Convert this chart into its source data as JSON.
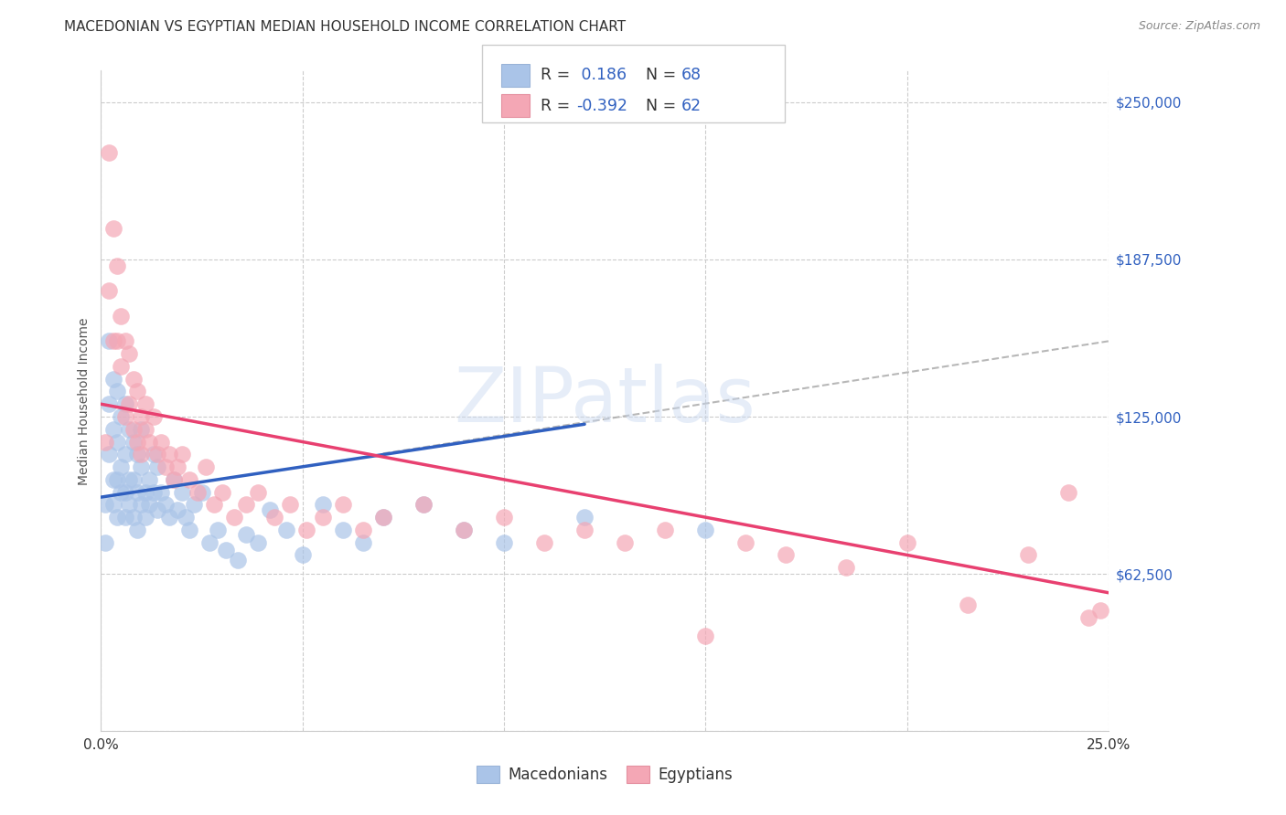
{
  "title": "MACEDONIAN VS EGYPTIAN MEDIAN HOUSEHOLD INCOME CORRELATION CHART",
  "source": "Source: ZipAtlas.com",
  "ylabel": "Median Household Income",
  "xlim": [
    0.0,
    0.25
  ],
  "ylim": [
    0,
    262500
  ],
  "yticks": [
    0,
    62500,
    125000,
    187500,
    250000
  ],
  "ytick_labels": [
    "",
    "$62,500",
    "$125,000",
    "$187,500",
    "$250,000"
  ],
  "xticks": [
    0.0,
    0.05,
    0.1,
    0.15,
    0.2,
    0.25
  ],
  "xtick_labels": [
    "0.0%",
    "",
    "",
    "",
    "",
    "25.0%"
  ],
  "background_color": "#ffffff",
  "grid_color": "#cccccc",
  "legend_R_mac": "0.186",
  "legend_N_mac": "68",
  "legend_R_egy": "-0.392",
  "legend_N_egy": "62",
  "mac_color": "#aac4e8",
  "egy_color": "#f4a7b5",
  "mac_line_color": "#3060c0",
  "egy_line_color": "#e84070",
  "title_fontsize": 11,
  "label_fontsize": 10,
  "tick_fontsize": 10,
  "macedonians_x": [
    0.001,
    0.001,
    0.002,
    0.002,
    0.002,
    0.003,
    0.003,
    0.003,
    0.003,
    0.004,
    0.004,
    0.004,
    0.004,
    0.005,
    0.005,
    0.005,
    0.006,
    0.006,
    0.006,
    0.006,
    0.007,
    0.007,
    0.007,
    0.008,
    0.008,
    0.008,
    0.009,
    0.009,
    0.009,
    0.01,
    0.01,
    0.01,
    0.011,
    0.011,
    0.012,
    0.012,
    0.013,
    0.013,
    0.014,
    0.014,
    0.015,
    0.016,
    0.017,
    0.018,
    0.019,
    0.02,
    0.021,
    0.022,
    0.023,
    0.025,
    0.027,
    0.029,
    0.031,
    0.034,
    0.036,
    0.039,
    0.042,
    0.046,
    0.05,
    0.055,
    0.06,
    0.065,
    0.07,
    0.08,
    0.09,
    0.1,
    0.12,
    0.15
  ],
  "macedonians_y": [
    90000,
    75000,
    155000,
    130000,
    110000,
    140000,
    120000,
    100000,
    90000,
    135000,
    115000,
    100000,
    85000,
    125000,
    105000,
    95000,
    110000,
    130000,
    95000,
    85000,
    120000,
    100000,
    90000,
    115000,
    100000,
    85000,
    110000,
    95000,
    80000,
    120000,
    105000,
    90000,
    95000,
    85000,
    100000,
    90000,
    110000,
    95000,
    105000,
    88000,
    95000,
    90000,
    85000,
    100000,
    88000,
    95000,
    85000,
    80000,
    90000,
    95000,
    75000,
    80000,
    72000,
    68000,
    78000,
    75000,
    88000,
    80000,
    70000,
    90000,
    80000,
    75000,
    85000,
    90000,
    80000,
    75000,
    85000,
    80000
  ],
  "egyptians_x": [
    0.001,
    0.002,
    0.002,
    0.003,
    0.003,
    0.004,
    0.004,
    0.005,
    0.005,
    0.006,
    0.006,
    0.007,
    0.007,
    0.008,
    0.008,
    0.009,
    0.009,
    0.01,
    0.01,
    0.011,
    0.011,
    0.012,
    0.013,
    0.014,
    0.015,
    0.016,
    0.017,
    0.018,
    0.019,
    0.02,
    0.022,
    0.024,
    0.026,
    0.028,
    0.03,
    0.033,
    0.036,
    0.039,
    0.043,
    0.047,
    0.051,
    0.055,
    0.06,
    0.065,
    0.07,
    0.08,
    0.09,
    0.1,
    0.11,
    0.12,
    0.13,
    0.14,
    0.15,
    0.16,
    0.17,
    0.185,
    0.2,
    0.215,
    0.23,
    0.24,
    0.245,
    0.248
  ],
  "egyptians_y": [
    115000,
    230000,
    175000,
    200000,
    155000,
    185000,
    155000,
    165000,
    145000,
    155000,
    125000,
    150000,
    130000,
    140000,
    120000,
    135000,
    115000,
    125000,
    110000,
    120000,
    130000,
    115000,
    125000,
    110000,
    115000,
    105000,
    110000,
    100000,
    105000,
    110000,
    100000,
    95000,
    105000,
    90000,
    95000,
    85000,
    90000,
    95000,
    85000,
    90000,
    80000,
    85000,
    90000,
    80000,
    85000,
    90000,
    80000,
    85000,
    75000,
    80000,
    75000,
    80000,
    38000,
    75000,
    70000,
    65000,
    75000,
    50000,
    70000,
    95000,
    45000,
    48000
  ]
}
